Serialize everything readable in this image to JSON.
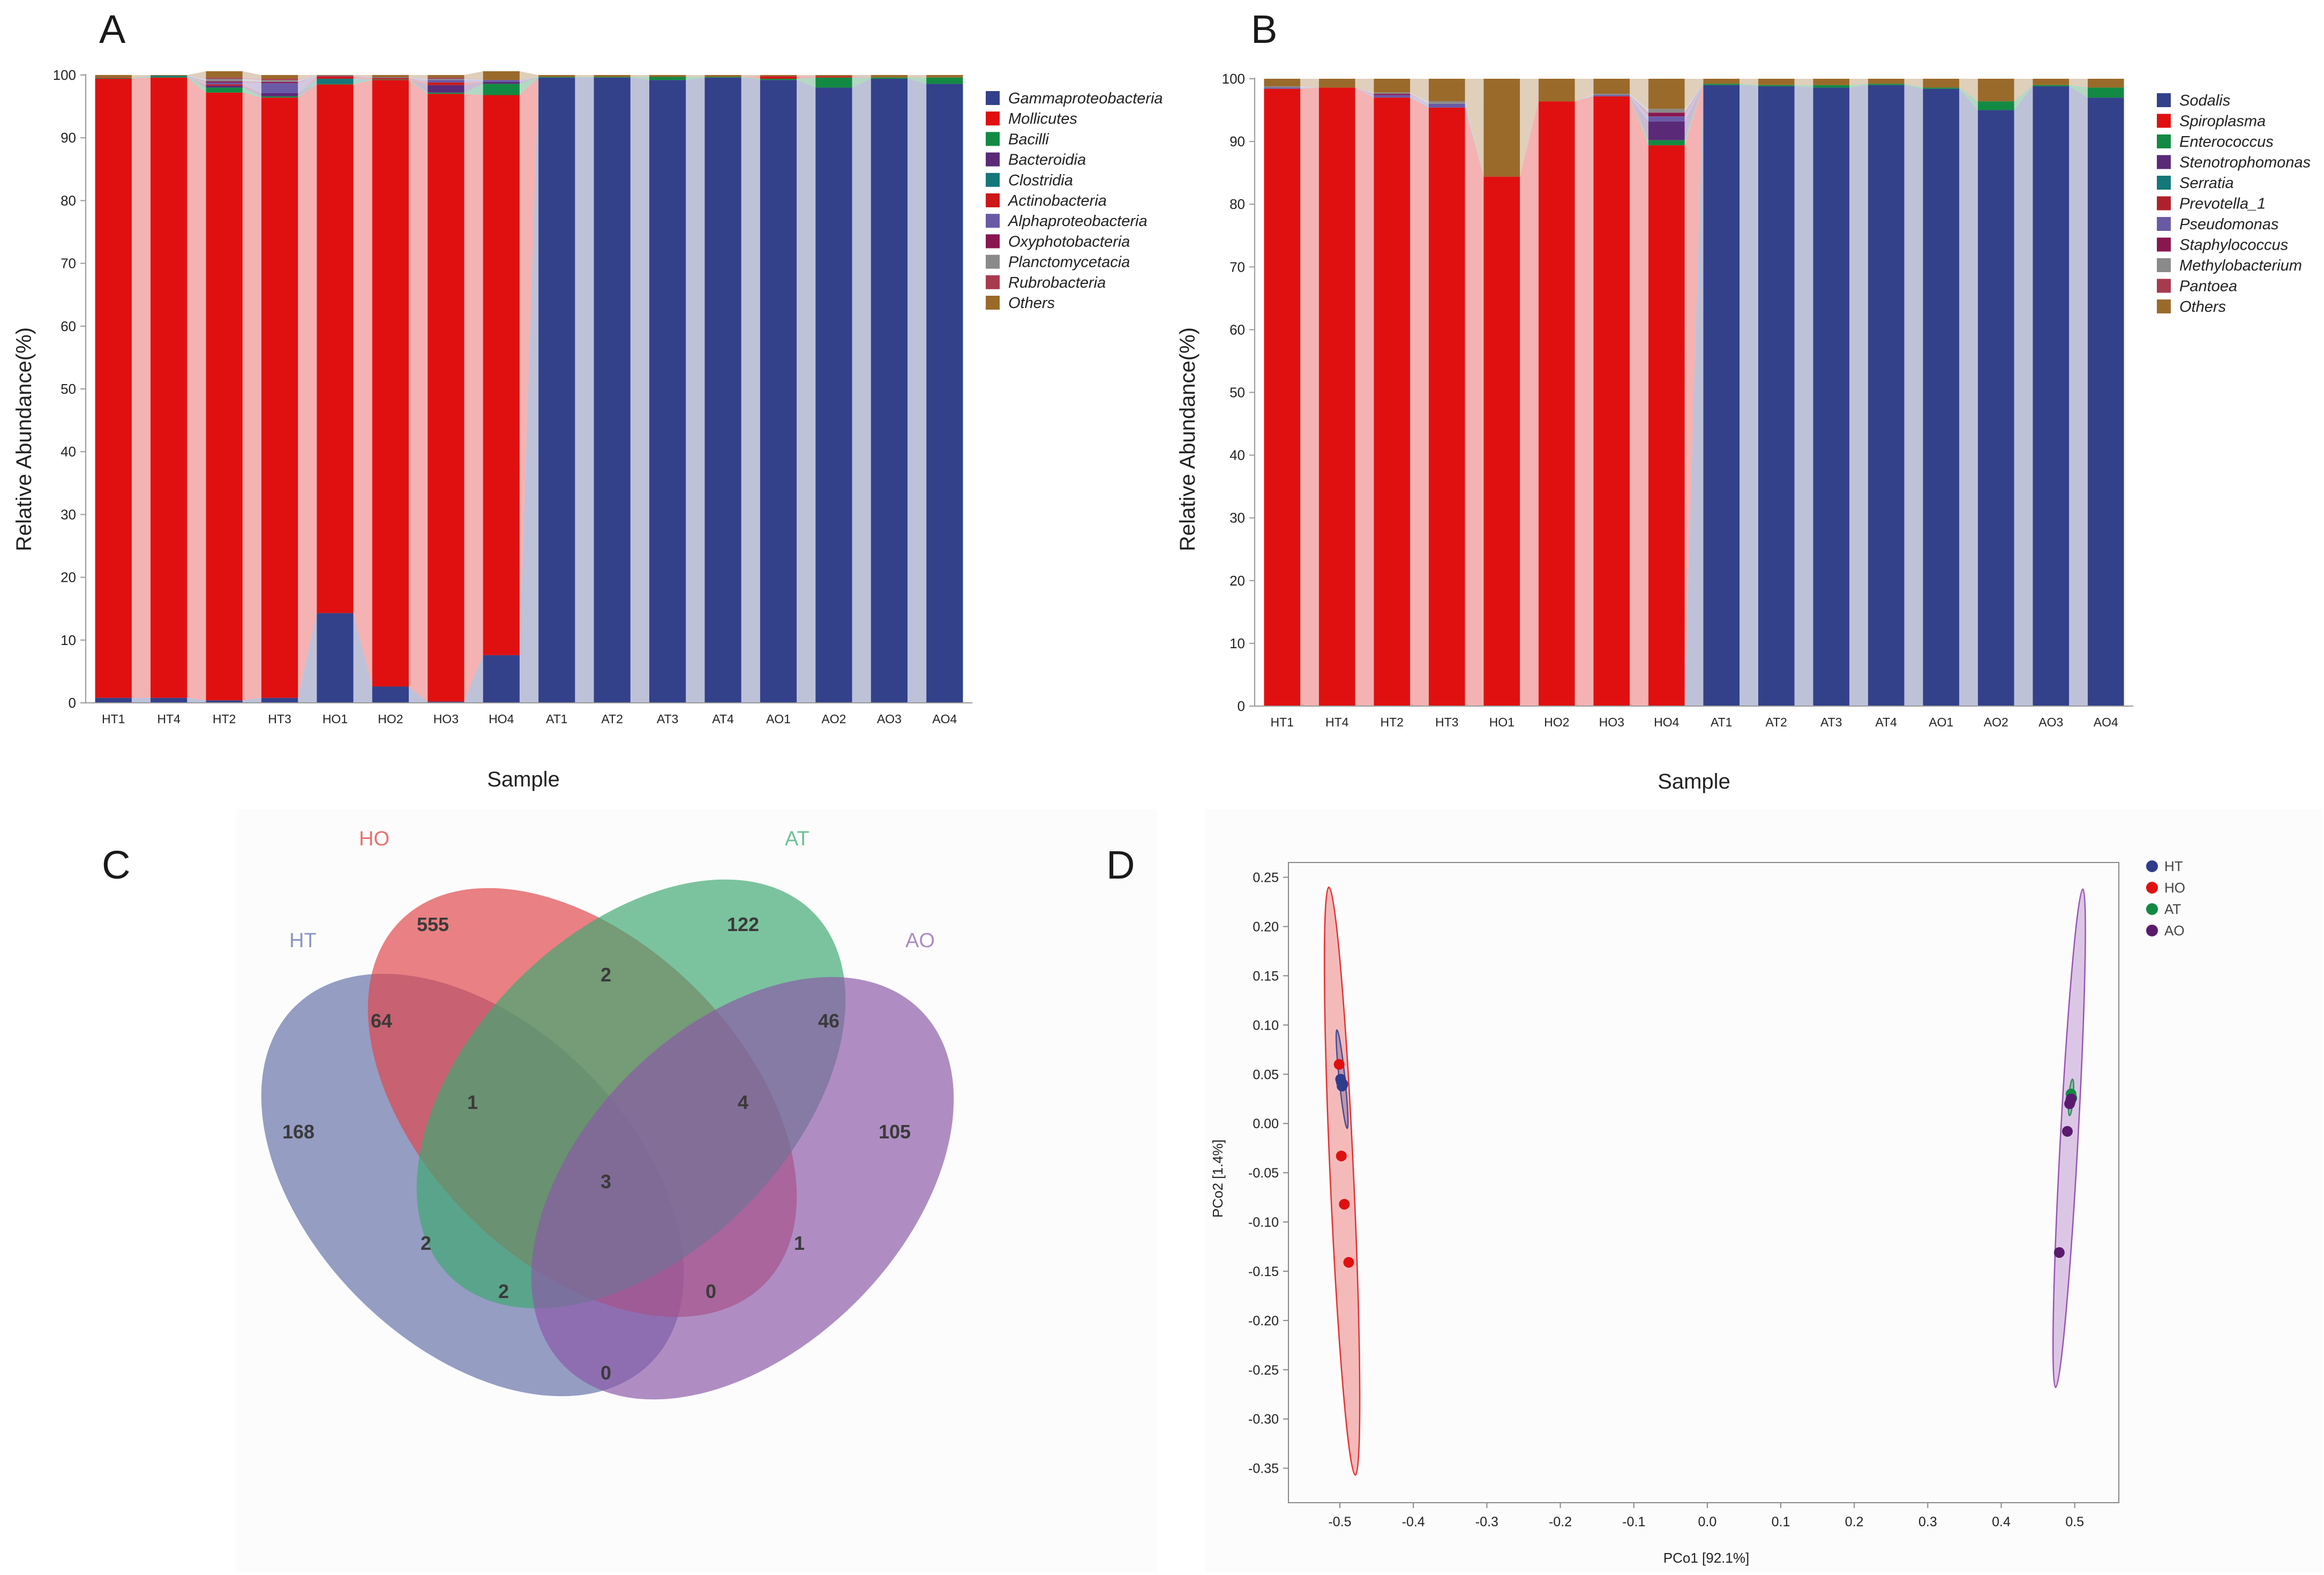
{
  "chart_data": [
    {
      "panel": "A",
      "type": "bar",
      "stacked": true,
      "xlabel": "Sample",
      "ylabel": "Relative Abundance(%)",
      "ylim": [
        0,
        100
      ],
      "yticks": [
        0,
        10,
        20,
        30,
        40,
        50,
        60,
        70,
        80,
        90,
        100
      ],
      "categories": [
        "HT1",
        "HT4",
        "HT2",
        "HT3",
        "HO1",
        "HO2",
        "HO3",
        "HO4",
        "AT1",
        "AT2",
        "AT3",
        "AT4",
        "AO1",
        "AO2",
        "AO3",
        "AO4"
      ],
      "series": [
        {
          "name": "Gammaproteobacteria",
          "color": "#33418a",
          "values": [
            0.8,
            0.8,
            0.4,
            0.8,
            14.3,
            2.6,
            0.2,
            7.6,
            99.6,
            99.6,
            99.2,
            99.6,
            99.2,
            98.0,
            99.4,
            98.6
          ]
        },
        {
          "name": "Mollicutes",
          "color": "#e01010",
          "values": [
            98.6,
            98.8,
            96.8,
            95.6,
            84.2,
            96.6,
            96.8,
            89.2,
            0,
            0,
            0,
            0,
            0,
            0,
            0,
            0
          ]
        },
        {
          "name": "Bacilli",
          "color": "#128a43",
          "values": [
            0.1,
            0.1,
            0.8,
            0.2,
            0.1,
            0.1,
            0.2,
            1.8,
            0.1,
            0.1,
            0.5,
            0.1,
            0.2,
            1.6,
            0.2,
            1.0
          ]
        },
        {
          "name": "Bacteroidia",
          "color": "#5a2a78",
          "values": [
            0,
            0,
            0.3,
            0.5,
            0,
            0,
            1.2,
            0.3,
            0,
            0,
            0,
            0,
            0,
            0,
            0,
            0
          ]
        },
        {
          "name": "Clostridia",
          "color": "#14777a",
          "values": [
            0,
            0.2,
            0,
            0,
            0.8,
            0,
            0,
            0,
            0,
            0,
            0,
            0,
            0,
            0,
            0,
            0
          ]
        },
        {
          "name": "Actinobacteria",
          "color": "#cc1818",
          "values": [
            0.1,
            0,
            0.2,
            0,
            0.4,
            0.2,
            0.4,
            0,
            0,
            0,
            0,
            0,
            0.4,
            0.2,
            0,
            0
          ]
        },
        {
          "name": "Alphaproteobacteria",
          "color": "#6a5aa6",
          "values": [
            0,
            0,
            0.3,
            1.6,
            0.1,
            0.1,
            0.4,
            0.3,
            0,
            0,
            0,
            0,
            0,
            0,
            0,
            0
          ]
        },
        {
          "name": "Oxyphotobacteria",
          "color": "#8a1650",
          "values": [
            0,
            0,
            0.2,
            0.2,
            0,
            0,
            0,
            0,
            0,
            0,
            0,
            0,
            0,
            0,
            0,
            0
          ]
        },
        {
          "name": "Planctomycetacia",
          "color": "#8a8a8a",
          "values": [
            0,
            0,
            0.4,
            0.3,
            0,
            0,
            0.2,
            0,
            0,
            0,
            0,
            0,
            0,
            0,
            0,
            0
          ]
        },
        {
          "name": "Rubrobacteria",
          "color": "#a83a4e",
          "values": [
            0,
            0,
            0.2,
            0.2,
            0,
            0,
            0.2,
            0,
            0,
            0,
            0,
            0,
            0,
            0,
            0,
            0
          ]
        },
        {
          "name": "Others",
          "color": "#9a6a2a",
          "values": [
            0.4,
            0.1,
            1.0,
            0.6,
            0.1,
            0.4,
            0.4,
            1.4,
            0.3,
            0.3,
            0.3,
            0.3,
            0.2,
            0.2,
            0.4,
            0.4
          ]
        }
      ]
    },
    {
      "panel": "B",
      "type": "bar",
      "stacked": true,
      "xlabel": "Sample",
      "ylabel": "Relative Abundance(%)",
      "ylim": [
        0,
        100
      ],
      "yticks": [
        0,
        10,
        20,
        30,
        40,
        50,
        60,
        70,
        80,
        90,
        100
      ],
      "categories": [
        "HT1",
        "HT4",
        "HT2",
        "HT3",
        "HO1",
        "HO2",
        "HO3",
        "HO4",
        "AT1",
        "AT2",
        "AT3",
        "AT4",
        "AO1",
        "AO2",
        "AO3",
        "AO4"
      ],
      "series": [
        {
          "name": "Sodalis",
          "color": "#33418a",
          "values": [
            0,
            0,
            0,
            0,
            0,
            0,
            0,
            0,
            99.0,
            98.8,
            98.6,
            99.0,
            98.4,
            95.0,
            98.8,
            97.0
          ]
        },
        {
          "name": "Spiroplasma",
          "color": "#e01010",
          "values": [
            98.4,
            98.6,
            97.0,
            95.4,
            84.4,
            96.4,
            97.2,
            89.4,
            0,
            0,
            0,
            0,
            0,
            0,
            0,
            0
          ]
        },
        {
          "name": "Enterococcus",
          "color": "#128a43",
          "values": [
            0,
            0,
            0,
            0,
            0,
            0,
            0,
            0.8,
            0.2,
            0.2,
            0.4,
            0.2,
            0.2,
            1.4,
            0.2,
            1.6
          ]
        },
        {
          "name": "Stenotrophomonas",
          "color": "#5a2a78",
          "values": [
            0,
            0,
            0,
            0,
            0,
            0,
            0,
            3.0,
            0,
            0,
            0,
            0,
            0,
            0,
            0,
            0
          ]
        },
        {
          "name": "Serratia",
          "color": "#14777a",
          "values": [
            0,
            0,
            0,
            0,
            0,
            0,
            0,
            0,
            0,
            0,
            0,
            0,
            0,
            0,
            0,
            0
          ]
        },
        {
          "name": "Prevotella_1",
          "color": "#b0202a",
          "values": [
            0,
            0,
            0,
            0,
            0,
            0,
            0,
            0,
            0,
            0,
            0,
            0,
            0,
            0,
            0,
            0
          ]
        },
        {
          "name": "Pseudomonas",
          "color": "#6a5aa6",
          "values": [
            0.2,
            0,
            0.4,
            0.6,
            0,
            0,
            0.2,
            0.8,
            0,
            0,
            0,
            0,
            0,
            0,
            0,
            0
          ]
        },
        {
          "name": "Staphylococcus",
          "color": "#8a1650",
          "values": [
            0,
            0,
            0.2,
            0,
            0,
            0,
            0,
            0.6,
            0,
            0,
            0,
            0,
            0,
            0,
            0,
            0
          ]
        },
        {
          "name": "Methylobacterium",
          "color": "#8a8a8a",
          "values": [
            0.2,
            0,
            0.2,
            0.4,
            0,
            0,
            0.2,
            0.6,
            0,
            0,
            0,
            0,
            0,
            0,
            0,
            0
          ]
        },
        {
          "name": "Pantoea",
          "color": "#a83a4e",
          "values": [
            0,
            0,
            0,
            0,
            0,
            0,
            0,
            0,
            0,
            0,
            0,
            0,
            0,
            0,
            0,
            0
          ]
        },
        {
          "name": "Others",
          "color": "#9a6a2a",
          "values": [
            1.2,
            1.4,
            2.2,
            3.6,
            15.6,
            3.6,
            2.4,
            4.8,
            0.8,
            1.0,
            1.0,
            0.8,
            1.4,
            3.6,
            1.0,
            1.4
          ]
        }
      ]
    },
    {
      "panel": "C",
      "type": "venn",
      "sets": [
        {
          "name": "HT",
          "color": "#6470a8"
        },
        {
          "name": "HO",
          "color": "#e0464a"
        },
        {
          "name": "AT",
          "color": "#3ea872"
        },
        {
          "name": "AO",
          "color": "#8a58a8"
        }
      ],
      "regions": [
        {
          "sets": [
            "HO"
          ],
          "value": 555
        },
        {
          "sets": [
            "AT"
          ],
          "value": 122
        },
        {
          "sets": [
            "HT"
          ],
          "value": 168
        },
        {
          "sets": [
            "AO"
          ],
          "value": 105
        },
        {
          "sets": [
            "HO",
            "AT"
          ],
          "value": 2
        },
        {
          "sets": [
            "HT",
            "HO"
          ],
          "value": 64
        },
        {
          "sets": [
            "AT",
            "AO"
          ],
          "value": 46
        },
        {
          "sets": [
            "HT",
            "HO",
            "AT"
          ],
          "value": 1
        },
        {
          "sets": [
            "HO",
            "AT",
            "AO"
          ],
          "value": 4
        },
        {
          "sets": [
            "HT",
            "HO",
            "AT",
            "AO"
          ],
          "value": 3
        },
        {
          "sets": [
            "HT",
            "AT"
          ],
          "value": 2
        },
        {
          "sets": [
            "HO",
            "AO"
          ],
          "value": 1
        },
        {
          "sets": [
            "HT",
            "AT",
            "AO"
          ],
          "value": 2
        },
        {
          "sets": [
            "HT",
            "HO",
            "AO"
          ],
          "value": 0
        },
        {
          "sets": [
            "HT",
            "AO"
          ],
          "value": 0
        }
      ]
    },
    {
      "panel": "D",
      "type": "scatter",
      "xlabel": "PCo1 [92.1%]",
      "ylabel": "PCo2 [1.4%]",
      "xlim": [
        -0.57,
        0.56
      ],
      "ylim": [
        -0.385,
        0.265
      ],
      "xticks": [
        -0.5,
        -0.4,
        -0.3,
        -0.2,
        -0.1,
        0.0,
        0.1,
        0.2,
        0.3,
        0.4,
        0.5
      ],
      "xtick_labels": [
        "-0.5",
        "-0.4",
        "-0.3",
        "-0.2",
        "-0.1",
        "0.0",
        "0.1",
        "0.2",
        "0.3",
        "0.4",
        "0.5"
      ],
      "yticks": [
        0.25,
        0.2,
        0.15,
        0.1,
        0.05,
        0.0,
        -0.05,
        -0.1,
        -0.15,
        -0.2,
        -0.25,
        -0.3,
        -0.35
      ],
      "ytick_labels": [
        "0.25",
        "0.20",
        "0.15",
        "0.10",
        "0.05",
        "0.00",
        "-0.05",
        "-0.10",
        "-0.15",
        "-0.20",
        "-0.25",
        "-0.30",
        "-0.35"
      ],
      "series": [
        {
          "name": "HT",
          "color": "#2f3c8c",
          "points": [
            [
              -0.498,
              0.042
            ],
            [
              -0.497,
              0.038
            ],
            [
              -0.499,
              0.045
            ],
            [
              -0.496,
              0.04
            ]
          ]
        },
        {
          "name": "HO",
          "color": "#e01010",
          "points": [
            [
              -0.501,
              0.06
            ],
            [
              -0.498,
              -0.033
            ],
            [
              -0.494,
              -0.082
            ],
            [
              -0.488,
              -0.141
            ]
          ]
        },
        {
          "name": "AT",
          "color": "#128a43",
          "points": [
            [
              0.495,
              0.03
            ],
            [
              0.496,
              0.026
            ],
            [
              0.494,
              0.022
            ],
            [
              0.495,
              0.025
            ]
          ]
        },
        {
          "name": "AO",
          "color": "#5a1a6e",
          "points": [
            [
              0.493,
              0.02
            ],
            [
              0.495,
              0.025
            ],
            [
              0.49,
              -0.008
            ],
            [
              0.479,
              -0.131
            ]
          ]
        }
      ],
      "ellipses": [
        {
          "group": "HO",
          "color": "#e01010",
          "from": [
            -0.515,
            0.24
          ],
          "to": [
            -0.479,
            -0.357
          ],
          "minor": 0.016
        },
        {
          "group": "HT",
          "color": "#2f3c8c",
          "from": [
            -0.504,
            0.095
          ],
          "to": [
            -0.49,
            -0.005
          ],
          "minor": 0.004
        },
        {
          "group": "AO",
          "color": "#8a3aa8",
          "from": [
            0.511,
            0.238
          ],
          "to": [
            0.474,
            -0.268
          ],
          "minor": 0.012
        },
        {
          "group": "AT",
          "color": "#128a43",
          "from": [
            0.497,
            0.045
          ],
          "to": [
            0.493,
            0.008
          ],
          "minor": 0.003
        }
      ]
    }
  ]
}
